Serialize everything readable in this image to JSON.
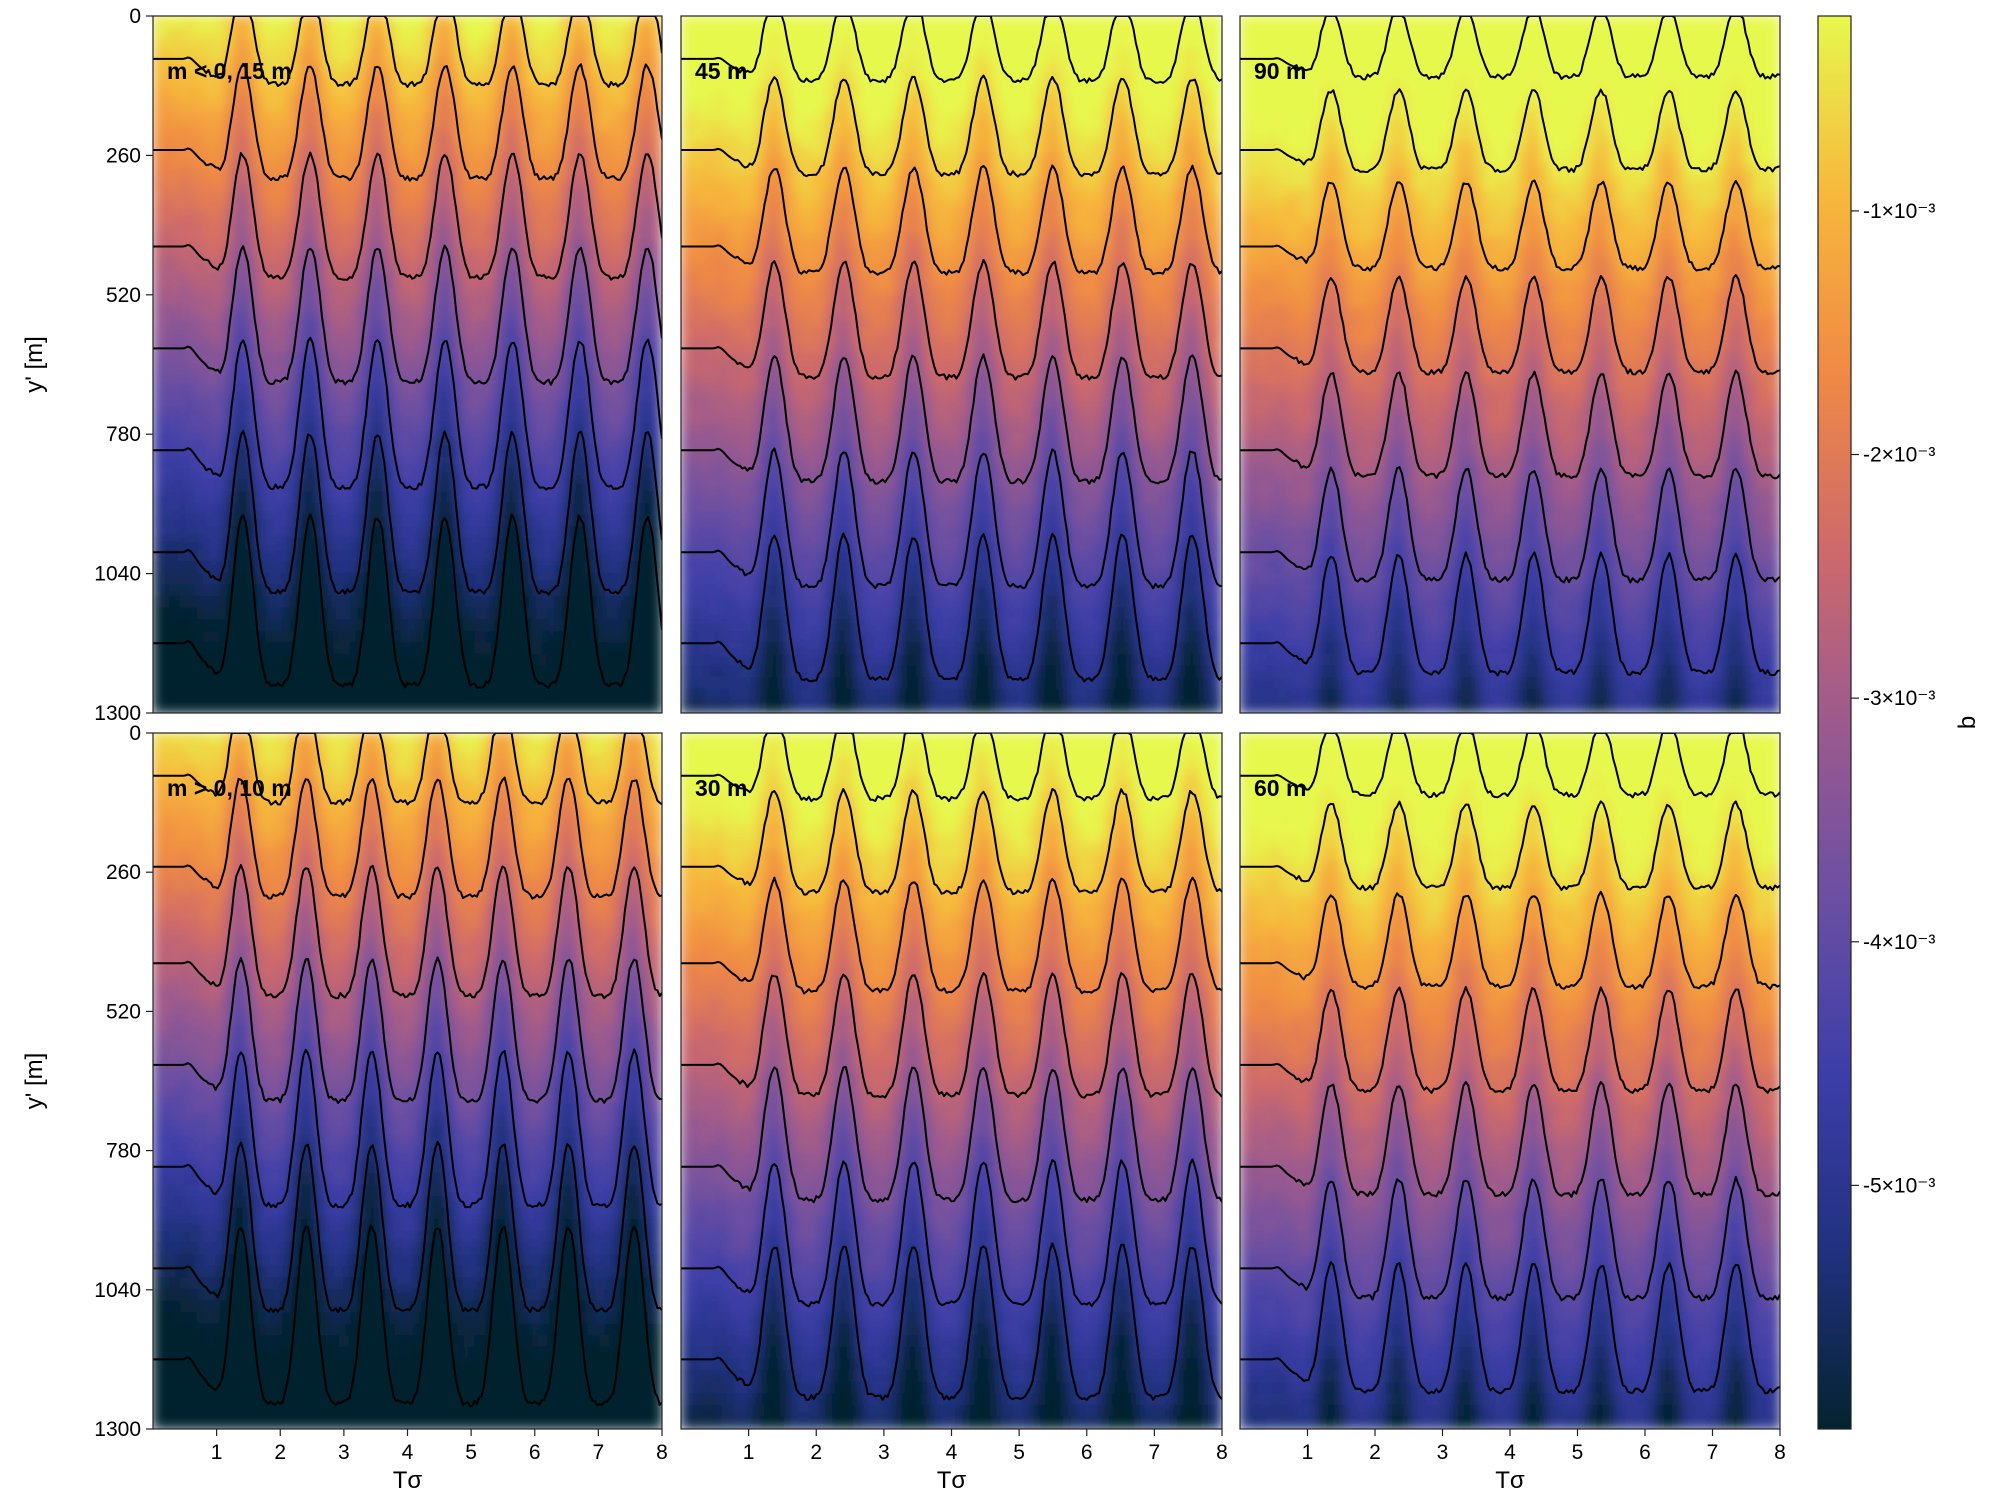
{
  "chart_data": {
    "type": "heatmap",
    "colormap": "thermal",
    "colors": [
      "#04232f",
      "#21317f",
      "#3c3ea8",
      "#6a4fa3",
      "#9c5a8e",
      "#cf6a6a",
      "#f08a44",
      "#f7b83c",
      "#e7f84e"
    ],
    "xlabel": "Tσ",
    "ylabel": "y' [m]",
    "xlim": [
      0,
      8
    ],
    "ylim": [
      1300,
      0
    ],
    "x_ticks": [
      "1",
      "2",
      "3",
      "4",
      "5",
      "6",
      "7",
      "8"
    ],
    "y_ticks": [
      "0",
      "260",
      "520",
      "780",
      "1040",
      "1300"
    ],
    "colorbar": {
      "label": "b",
      "range": [
        -0.006,
        -0.0002
      ],
      "ticks": [
        {
          "value": -0.001,
          "label": "-1×10⁻³"
        },
        {
          "value": -0.002,
          "label": "-2×10⁻³"
        },
        {
          "value": -0.003,
          "label": "-3×10⁻³"
        },
        {
          "value": -0.004,
          "label": "-4×10⁻³"
        },
        {
          "value": -0.005,
          "label": "-5×10⁻³"
        }
      ]
    },
    "panels": [
      {
        "label": "m < 0, 15 m",
        "row": 0,
        "col": 0,
        "crest": 0.45,
        "amp": 1.0,
        "period": 1.06
      },
      {
        "label": "45 m",
        "row": 0,
        "col": 1,
        "crest": 0.75,
        "amp": 0.85,
        "period": 1.03
      },
      {
        "label": "90 m",
        "row": 0,
        "col": 2,
        "crest": 0.85,
        "amp": 0.7,
        "period": 1.0
      },
      {
        "label": "m > 0, 10 m",
        "row": 1,
        "col": 0,
        "crest": 0.4,
        "amp": 1.05,
        "period": 1.03
      },
      {
        "label": "30 m",
        "row": 1,
        "col": 1,
        "crest": 0.7,
        "amp": 0.9,
        "period": 1.03
      },
      {
        "label": "60 m",
        "row": 1,
        "col": 2,
        "crest": 0.8,
        "amp": 0.75,
        "period": 1.0
      }
    ]
  }
}
